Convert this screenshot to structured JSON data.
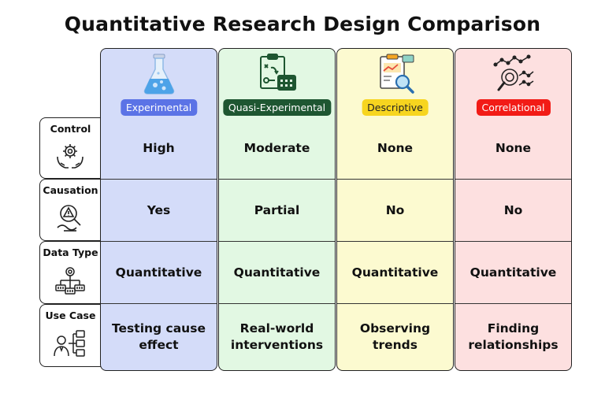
{
  "title": "Quantitative Research Design Comparison",
  "rows": [
    {
      "label": "Control",
      "icon": "gear-hands-icon"
    },
    {
      "label": "Causation",
      "icon": "warning-magnifier-icon"
    },
    {
      "label": "Data Type",
      "icon": "data-flow-icon"
    },
    {
      "label": "Use Case",
      "icon": "person-diagram-icon"
    }
  ],
  "columns": [
    {
      "name": "Experimental",
      "icon": "flask-icon",
      "bg": "#d4dcf9",
      "badge_bg": "#5b73e6",
      "badge_fg": "#ffffff",
      "values": [
        "High",
        "Yes",
        "Quantitative",
        "Testing cause effect"
      ]
    },
    {
      "name": "Quasi-Experimental",
      "icon": "clipboard-calendar-icon",
      "bg": "#e2f8e3",
      "badge_bg": "#1e5631",
      "badge_fg": "#ffffff",
      "values": [
        "Moderate",
        "Partial",
        "Quantitative",
        "Real-world interventions"
      ]
    },
    {
      "name": "Descriptive",
      "icon": "chart-magnifier-icon",
      "bg": "#fcfad0",
      "badge_bg": "#f7d51f",
      "badge_fg": "#222222",
      "values": [
        "None",
        "No",
        "Quantitative",
        "Observing trends"
      ]
    },
    {
      "name": "Correlational",
      "icon": "scatter-magnifier-icon",
      "bg": "#fde0e0",
      "badge_bg": "#f21b16",
      "badge_fg": "#ffffff",
      "values": [
        "None",
        "No",
        "Quantitative",
        "Finding relationships"
      ]
    }
  ]
}
